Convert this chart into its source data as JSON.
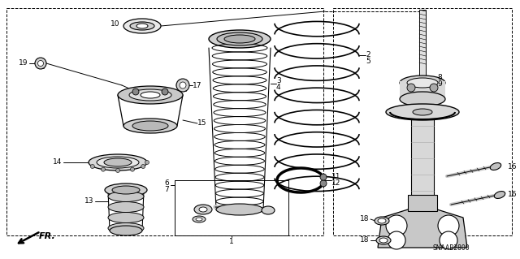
{
  "bg_color": "#ffffff",
  "diagram_code": "SNAAB2800",
  "fr_label": "FR.",
  "figsize": [
    6.4,
    3.19
  ],
  "dpi": 100
}
